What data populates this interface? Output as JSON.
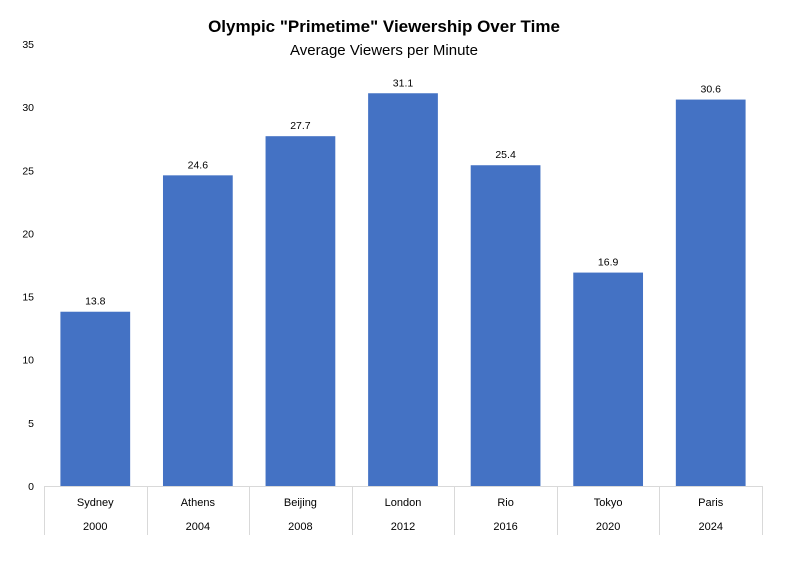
{
  "chart_data": {
    "type": "bar",
    "title": "Olympic \"Primetime\" Viewership Over Time",
    "subtitle": "Average Viewers per Minute",
    "categories": [
      {
        "city": "Sydney",
        "year": "2000"
      },
      {
        "city": "Athens",
        "year": "2004"
      },
      {
        "city": "Beijing",
        "year": "2008"
      },
      {
        "city": "London",
        "year": "2012"
      },
      {
        "city": "Rio",
        "year": "2016"
      },
      {
        "city": "Tokyo",
        "year": "2020"
      },
      {
        "city": "Paris",
        "year": "2024"
      }
    ],
    "values": [
      13.8,
      24.6,
      27.7,
      31.1,
      25.4,
      16.9,
      30.6
    ],
    "value_labels": [
      "13.8",
      "24.6",
      "27.7",
      "31.1",
      "25.4",
      "16.9",
      "30.6"
    ],
    "ylim": [
      0,
      35
    ],
    "yticks": [
      "0",
      "5",
      "10",
      "15",
      "20",
      "25",
      "30",
      "35"
    ],
    "grid": false,
    "legend": "none",
    "bar_color": "#4472C4"
  }
}
